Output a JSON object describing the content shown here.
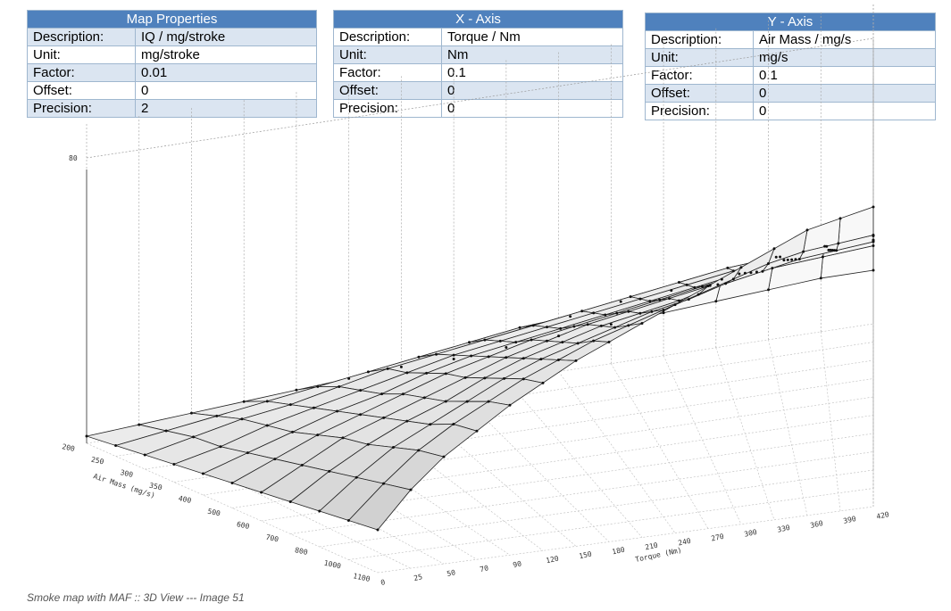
{
  "tables": [
    {
      "title": "Map Properties",
      "rows": [
        {
          "label": "Description:",
          "value": "IQ / mg/stroke"
        },
        {
          "label": "Unit:",
          "value": "mg/stroke"
        },
        {
          "label": "Factor:",
          "value": "0.01"
        },
        {
          "label": "Offset:",
          "value": "0"
        },
        {
          "label": "Precision:",
          "value": "2"
        }
      ]
    },
    {
      "title": "X - Axis",
      "rows": [
        {
          "label": "Description:",
          "value": "Torque / Nm"
        },
        {
          "label": "Unit:",
          "value": "Nm"
        },
        {
          "label": "Factor:",
          "value": "0.1"
        },
        {
          "label": "Offset:",
          "value": "0"
        },
        {
          "label": "Precision:",
          "value": "0"
        }
      ]
    },
    {
      "title": "Y - Axis",
      "rows": [
        {
          "label": "Description:",
          "value": "Air Mass / mg/s"
        },
        {
          "label": "Unit:",
          "value": "mg/s"
        },
        {
          "label": "Factor:",
          "value": "0.1"
        },
        {
          "label": "Offset:",
          "value": "0"
        },
        {
          "label": "Precision:",
          "value": "0"
        }
      ]
    }
  ],
  "chart_data": {
    "type": "surface-3d",
    "title": "",
    "xlabel": "Torque (Nm)",
    "ylabel": "Air Mass (mg/s)",
    "zlabel": "",
    "x_ticks": [
      "0",
      "25",
      "50",
      "70",
      "90",
      "120",
      "150",
      "180",
      "210",
      "240",
      "270",
      "300",
      "330",
      "360",
      "390",
      "420"
    ],
    "y_ticks": [
      "200",
      "250",
      "300",
      "350",
      "400",
      "500",
      "600",
      "700",
      "800",
      "1000",
      "1100"
    ],
    "z_ticks": [
      "80"
    ],
    "grid": true,
    "z_values": [
      [
        2,
        3,
        4,
        5,
        6,
        7,
        8,
        8,
        9,
        10,
        11,
        12,
        13,
        14,
        15,
        15
      ],
      [
        3,
        5,
        7,
        9,
        11,
        13,
        15,
        17,
        19,
        20,
        22,
        23,
        24,
        25,
        26,
        27
      ],
      [
        4,
        7,
        10,
        12,
        15,
        18,
        20,
        22,
        24,
        26,
        28,
        30,
        32,
        33,
        34,
        35
      ],
      [
        5,
        8,
        12,
        15,
        18,
        21,
        24,
        26,
        28,
        30,
        32,
        34,
        36,
        38,
        39,
        40
      ],
      [
        6,
        10,
        14,
        18,
        21,
        25,
        28,
        30,
        32,
        34,
        36,
        38,
        40,
        42,
        43,
        44
      ],
      [
        7,
        12,
        17,
        21,
        25,
        29,
        32,
        35,
        37,
        39,
        41,
        43,
        45,
        47,
        48,
        49
      ],
      [
        8,
        14,
        20,
        24,
        28,
        32,
        36,
        39,
        42,
        44,
        46,
        48,
        50,
        52,
        53,
        54
      ],
      [
        9,
        16,
        22,
        27,
        31,
        36,
        40,
        43,
        46,
        48,
        50,
        53,
        55,
        57,
        58,
        59
      ],
      [
        10,
        18,
        25,
        30,
        35,
        40,
        44,
        47,
        50,
        53,
        55,
        58,
        60,
        62,
        63,
        64
      ],
      [
        11,
        20,
        28,
        34,
        39,
        44,
        48,
        52,
        55,
        58,
        61,
        64,
        67,
        69,
        70,
        71
      ],
      [
        12,
        22,
        30,
        36,
        42,
        47,
        52,
        56,
        60,
        64,
        68,
        72,
        76,
        80,
        82,
        84
      ]
    ]
  },
  "caption": "Smoke map with MAF :: 3D View --- Image 51"
}
